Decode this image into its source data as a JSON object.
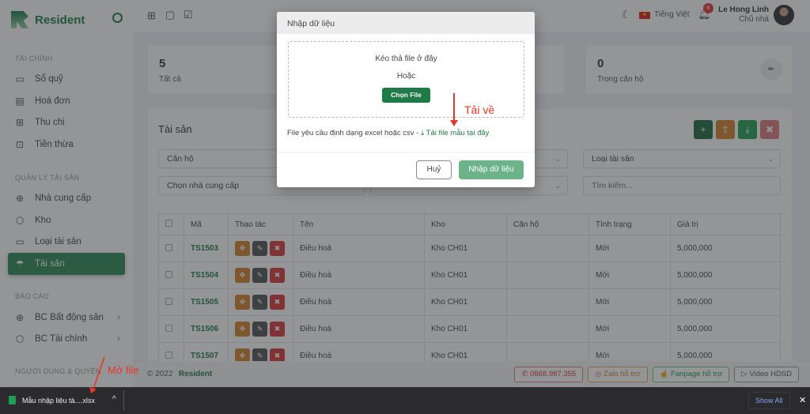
{
  "app": {
    "name": "Resident"
  },
  "sidebar": {
    "sections": [
      {
        "title": "TÀI CHÍNH",
        "items": [
          {
            "label": "Sổ quỹ",
            "icon": "book-icon"
          },
          {
            "label": "Hoá đơn",
            "icon": "document-icon"
          },
          {
            "label": "Thu chi",
            "icon": "folder-plus-icon"
          },
          {
            "label": "Tiền thừa",
            "icon": "wallet-icon"
          }
        ]
      },
      {
        "title": "QUẢN LÝ TÀI SẢN",
        "items": [
          {
            "label": "Nhà cung cấp",
            "icon": "globe-icon"
          },
          {
            "label": "Kho",
            "icon": "box-icon"
          },
          {
            "label": "Loại tài sản",
            "icon": "tv-icon"
          },
          {
            "label": "Tài sản",
            "icon": "umbrella-icon",
            "active": true
          }
        ]
      },
      {
        "title": "BÁO CÁO",
        "items": [
          {
            "label": "BC Bất động sản",
            "icon": "globe-icon"
          },
          {
            "label": "BC Tài chính",
            "icon": "box-icon"
          }
        ]
      },
      {
        "title": "NGƯỜI DÙNG & QUYỀN",
        "items": []
      }
    ]
  },
  "header": {
    "language": "Tiếng Việt",
    "notifications": "6",
    "user_name": "Le Hong Linh",
    "user_role": "Chủ nhà"
  },
  "stats": [
    {
      "value": "5",
      "label": "Tất cả"
    },
    {
      "value": "0",
      "label": "Trong căn hộ"
    }
  ],
  "panel": {
    "title": "Tài sản",
    "filters": {
      "apartment": "Căn hộ",
      "asset_type": "Loại tài sản",
      "supplier": "Chọn nhà cung cấp",
      "search_placeholder": "Tìm kiếm..."
    }
  },
  "table": {
    "columns": [
      "Mã",
      "Thao tác",
      "Tên",
      "Kho",
      "Căn hộ",
      "Tình trạng",
      "Giá trị"
    ],
    "rows": [
      {
        "code": "TS1503",
        "name": "Điều hoà",
        "warehouse": "Kho CH01",
        "apartment": "",
        "status": "Mới",
        "value": "5,000,000"
      },
      {
        "code": "TS1504",
        "name": "Điều hoà",
        "warehouse": "Kho CH01",
        "apartment": "",
        "status": "Mới",
        "value": "5,000,000"
      },
      {
        "code": "TS1505",
        "name": "Điều hoà",
        "warehouse": "Kho CH01",
        "apartment": "",
        "status": "Mới",
        "value": "5,000,000"
      },
      {
        "code": "TS1506",
        "name": "Điều hoà",
        "warehouse": "Kho CH01",
        "apartment": "",
        "status": "Mới",
        "value": "5,000,000"
      },
      {
        "code": "TS1507",
        "name": "Điều hoà",
        "warehouse": "Kho CH01",
        "apartment": "",
        "status": "Mới",
        "value": "5,000,000"
      }
    ]
  },
  "footer": {
    "copyright": "© 2022",
    "brand": "Resident",
    "phone": "0868.987.355",
    "zalo": "Zalo hỗ trợ",
    "fanpage": "Fanpage hỗ trợ",
    "video": "Video HDSD"
  },
  "modal": {
    "title": "Nhập dữ liệu",
    "drop_text": "Kéo thả file ở đây",
    "or_text": "Hoặc",
    "choose_file": "Chọn File",
    "format_note": "File yêu cầu định dạng excel hoặc csv -",
    "template_link": "Tải file mẫu tại đây",
    "cancel": "Huỷ",
    "submit": "Nhập dữ liệu"
  },
  "annotations": {
    "download": "Tải về",
    "open_file": "Mở file"
  },
  "download_bar": {
    "file_name": "Mẫu nhập liệu tà....xlsx",
    "show_all": "Show All"
  },
  "colors": {
    "brand": "#1e7a46",
    "annotation": "#e8362a"
  }
}
